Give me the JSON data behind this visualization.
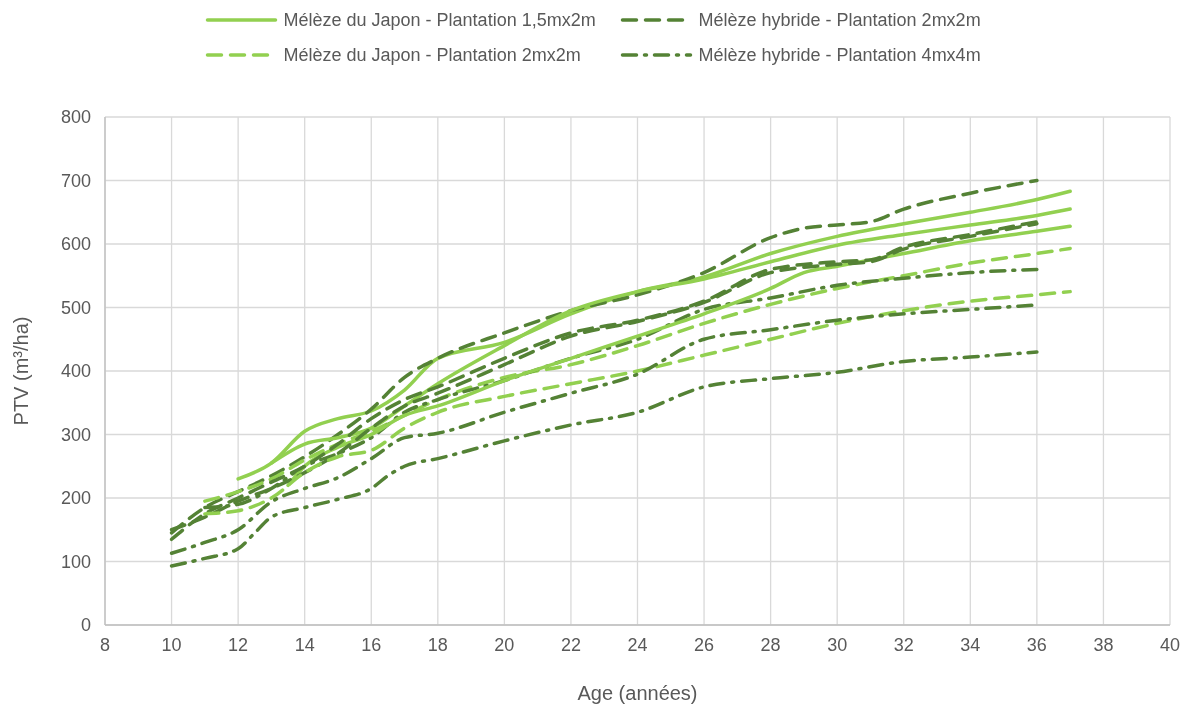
{
  "chart_data": {
    "type": "line",
    "xlabel": "Age (années)",
    "ylabel": "PTV (m³/ha)",
    "xlim": [
      8,
      40
    ],
    "xticks": [
      8,
      10,
      12,
      14,
      16,
      18,
      20,
      22,
      24,
      26,
      28,
      30,
      32,
      34,
      36,
      38,
      40
    ],
    "ylim": [
      0,
      800
    ],
    "yticks": [
      0,
      100,
      200,
      300,
      400,
      500,
      600,
      700,
      800
    ],
    "grid": true,
    "legend": "top",
    "series": [
      {
        "name": "Mélèze du Japon - Plantation 1,5mx2m",
        "color": "#92d050",
        "line_style": "solid",
        "x": [
          12,
          13,
          14,
          15,
          16,
          17,
          18,
          20,
          22,
          24,
          26,
          28,
          30,
          32,
          34,
          36,
          37
        ],
        "values": [
          230,
          255,
          305,
          325,
          337,
          370,
          420,
          445,
          490,
          525,
          548,
          585,
          612,
          632,
          650,
          670,
          683
        ]
      },
      {
        "name": "Mélèze hybride - Plantation 2mx2m",
        "color": "#548235",
        "line_style": "dashed",
        "x": [
          10,
          11,
          12,
          13,
          14,
          15,
          16,
          17,
          18,
          20,
          22,
          24,
          26,
          28,
          29,
          30,
          31,
          32,
          34,
          36
        ],
        "values": [
          145,
          185,
          210,
          235,
          265,
          300,
          340,
          390,
          420,
          460,
          495,
          520,
          555,
          610,
          625,
          630,
          635,
          655,
          680,
          700
        ]
      },
      {
        "name": "Mélèze du Japon - Plantation 2mx2m",
        "color": "#92d050",
        "line_style": "dashed",
        "x": [
          11,
          12,
          13,
          14,
          15,
          16,
          17,
          18,
          20,
          22,
          24,
          26,
          28,
          30,
          32,
          34,
          36,
          37
        ],
        "values": [
          195,
          210,
          230,
          260,
          285,
          305,
          330,
          355,
          390,
          410,
          440,
          475,
          505,
          530,
          550,
          570,
          585,
          593
        ]
      },
      {
        "name": "Mélèze hybride - Plantation 4mx4m",
        "color": "#548235",
        "line_style": "dashdot",
        "x": [
          11,
          12,
          13,
          14,
          15,
          16,
          17,
          18,
          20,
          22,
          24,
          26,
          28,
          30,
          32,
          34,
          36
        ],
        "values": [
          185,
          190,
          215,
          250,
          270,
          295,
          335,
          355,
          385,
          420,
          450,
          497,
          515,
          535,
          546,
          555,
          560
        ]
      },
      {
        "color": "#92d050",
        "line_style": "solid",
        "x": [
          13,
          14,
          15,
          16,
          17,
          18,
          20,
          22,
          24,
          26,
          28,
          30,
          32,
          34,
          36,
          37
        ],
        "values": [
          255,
          285,
          295,
          310,
          345,
          380,
          440,
          495,
          525,
          545,
          572,
          598,
          615,
          630,
          645,
          655
        ]
      },
      {
        "color": "#92d050",
        "line_style": "solid",
        "x": [
          13.5,
          14,
          15,
          16,
          17,
          18,
          20,
          22,
          24,
          26,
          28,
          29,
          30,
          32,
          34,
          36,
          37
        ],
        "values": [
          220,
          250,
          280,
          300,
          330,
          345,
          385,
          420,
          455,
          490,
          530,
          555,
          565,
          585,
          605,
          620,
          628
        ]
      },
      {
        "color": "#548235",
        "line_style": "dashed",
        "x": [
          10,
          11,
          12,
          13,
          14,
          15,
          16,
          17,
          18,
          20,
          22,
          24,
          26,
          28,
          30,
          31,
          32,
          34,
          36
        ],
        "values": [
          135,
          175,
          200,
          225,
          250,
          285,
          325,
          355,
          375,
          420,
          460,
          480,
          510,
          560,
          572,
          575,
          595,
          615,
          635
        ]
      },
      {
        "color": "#548235",
        "line_style": "dashed",
        "x": [
          10,
          11,
          12,
          13,
          14,
          15,
          16,
          17,
          18,
          20,
          22,
          24,
          26,
          28,
          30,
          31,
          32,
          34,
          36
        ],
        "values": [
          150,
          170,
          195,
          215,
          240,
          270,
          310,
          345,
          365,
          410,
          455,
          478,
          508,
          555,
          568,
          572,
          592,
          612,
          632
        ]
      },
      {
        "color": "#92d050",
        "line_style": "dashed",
        "x": [
          11,
          12,
          13,
          14,
          15,
          16,
          17,
          18,
          20,
          22,
          24,
          26,
          28,
          30,
          32,
          34,
          36,
          37
        ],
        "values": [
          175,
          180,
          200,
          240,
          265,
          275,
          310,
          335,
          360,
          380,
          400,
          425,
          450,
          475,
          495,
          510,
          520,
          525
        ]
      },
      {
        "color": "#548235",
        "line_style": "dashdot",
        "x": [
          10,
          11,
          12,
          13,
          14,
          15,
          16,
          17,
          18,
          20,
          22,
          24,
          26,
          28,
          30,
          32,
          34,
          36
        ],
        "values": [
          113,
          130,
          150,
          194,
          215,
          232,
          262,
          295,
          302,
          335,
          365,
          395,
          450,
          465,
          480,
          490,
          497,
          504
        ]
      },
      {
        "color": "#548235",
        "line_style": "dashdot",
        "x": [
          10,
          11,
          12,
          12.5,
          13,
          14,
          15,
          16,
          16.5,
          17,
          18,
          20,
          22,
          24,
          26,
          28,
          30,
          32,
          34,
          36
        ],
        "values": [
          93,
          105,
          120,
          145,
          170,
          185,
          198,
          215,
          235,
          250,
          262,
          290,
          315,
          335,
          375,
          388,
          398,
          415,
          422,
          430
        ]
      }
    ]
  }
}
